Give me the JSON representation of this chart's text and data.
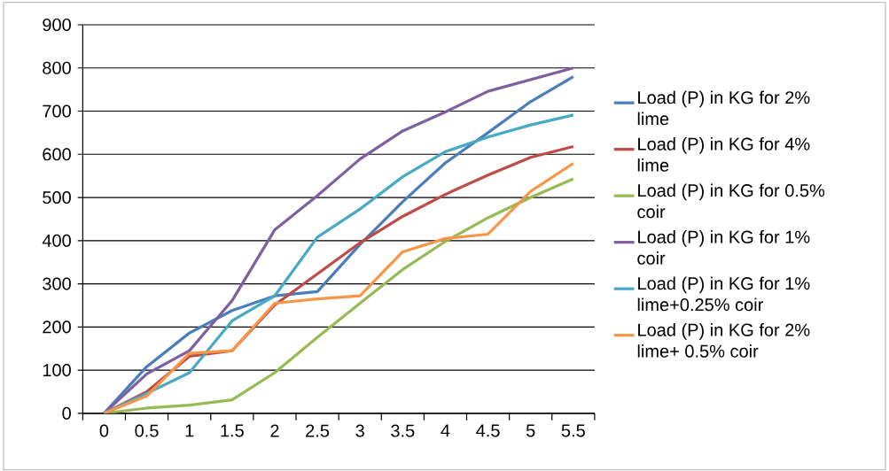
{
  "chart_data": {
    "type": "line",
    "categories": [
      "0",
      "0.5",
      "1",
      "1.5",
      "2",
      "2.5",
      "3",
      "3.5",
      "4",
      "4.5",
      "5",
      "5.5"
    ],
    "series": [
      {
        "name": "Load (P) in KG for 2% lime",
        "color": "#4a7ebb",
        "values": [
          0,
          108,
          186,
          238,
          272,
          282,
          391,
          490,
          580,
          650,
          722,
          780
        ]
      },
      {
        "name": "Load (P) in KG for 4% lime",
        "color": "#be4b48",
        "values": [
          0,
          50,
          132,
          145,
          251,
          323,
          395,
          456,
          507,
          552,
          593,
          618
        ]
      },
      {
        "name": "Load (P) in KG for 0.5% coir",
        "color": "#98b954",
        "values": [
          0,
          12,
          19,
          31,
          94,
          176,
          255,
          333,
          398,
          453,
          500,
          543
        ]
      },
      {
        "name": "Load (P) in KG for 1% coir",
        "color": "#7d60a0",
        "values": [
          0,
          91,
          145,
          261,
          425,
          504,
          589,
          654,
          698,
          746,
          773,
          800
        ]
      },
      {
        "name": "Load (P) in KG for 1% lime+0.25% coir",
        "color": "#46aac5",
        "values": [
          0,
          46,
          94,
          214,
          272,
          408,
          473,
          548,
          606,
          640,
          668,
          691
        ]
      },
      {
        "name": "Load (P) in KG for 2% lime+ 0.5% coir",
        "color": "#f79646",
        "values": [
          0,
          40,
          139,
          145,
          255,
          265,
          272,
          374,
          405,
          415,
          514,
          579
        ]
      }
    ],
    "ylim": [
      0,
      900
    ],
    "yticks": [
      0,
      100,
      200,
      300,
      400,
      500,
      600,
      700,
      800,
      900
    ],
    "grid": "y",
    "legend": "right",
    "marker": "none",
    "line_style": "solid"
  }
}
